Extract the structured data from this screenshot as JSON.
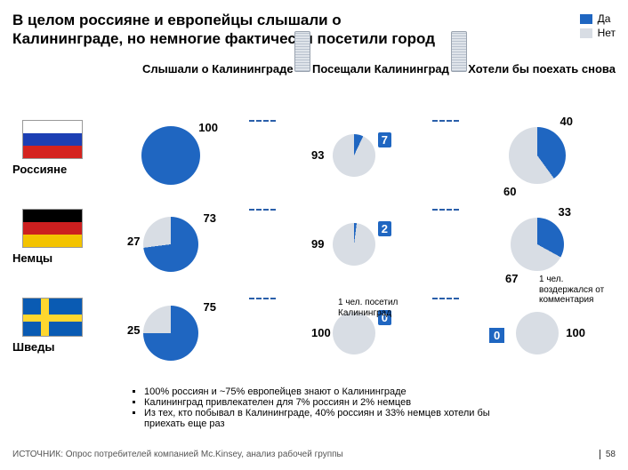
{
  "title": "В целом россияне и европейцы слышали о Калининграде, но немногие фактически посетили город",
  "legend": {
    "yes": "Да",
    "no": "Нет",
    "yes_color": "#1f66c1",
    "no_color": "#d8dde4"
  },
  "columns": {
    "c1": "Слышали о Калининграде",
    "c2": "Посещали Калининград",
    "c3": "Хотели бы поехать снова"
  },
  "rows": {
    "r1": {
      "label": "Россияне",
      "flag": "ru",
      "heard": {
        "yes": 100,
        "no": 0,
        "size": 66
      },
      "visit": {
        "yes": 7,
        "no": 93,
        "size": 48
      },
      "again": {
        "yes": 40,
        "no": 60,
        "size": 64
      }
    },
    "r2": {
      "label": "Немцы",
      "flag": "de",
      "heard": {
        "yes": 73,
        "no": 27,
        "size": 62
      },
      "visit": {
        "yes": 2,
        "no": 99,
        "size": 48,
        "note": ""
      },
      "again": {
        "yes": 33,
        "no": 67,
        "size": 60
      }
    },
    "r3": {
      "label": "Шведы",
      "flag": "se",
      "heard": {
        "yes": 75,
        "no": 25,
        "size": 62
      },
      "visit": {
        "yes": 0,
        "no": 100,
        "size": 48,
        "note": "1 чел. посетил Калининград"
      },
      "again": {
        "yes": 0,
        "no": 100,
        "size": 48,
        "note": "1 чел. воздержался от комментария"
      }
    }
  },
  "bullets": [
    "100% россиян и ~75% европейцев знают о Калининграде",
    "Калининград привлекателен для 7% россиян и 2% немцев",
    "Из тех, кто побывал в Калининграде, 40% россиян и 33% немцев хотели бы приехать еще раз"
  ],
  "source": "ИСТОЧНИК: Опрос потребителей компанией Mc.Kinsey, анализ рабочей группы",
  "page": "58",
  "colors": {
    "pie_yes": "#1f66c1",
    "pie_no": "#d8dde4",
    "ru": [
      "#ffffff",
      "#1c3fb4",
      "#d4231f"
    ],
    "de": [
      "#000000",
      "#cc1f1f",
      "#f3c300"
    ]
  }
}
